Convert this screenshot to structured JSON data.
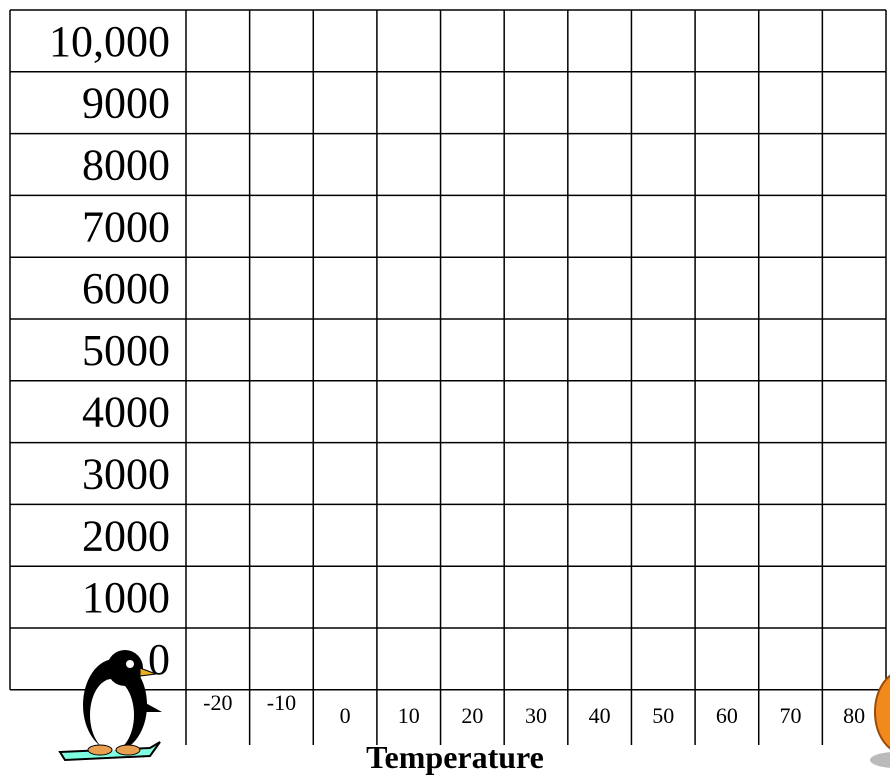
{
  "y_labels": [
    "10,000",
    "9000",
    "8000",
    "7000",
    "6000",
    "5000",
    "4000",
    "3000",
    "2000",
    "1000",
    "0"
  ],
  "x_labels": [
    "-20",
    "-10",
    "0",
    "10",
    "20",
    "30",
    "40",
    "50",
    "60",
    "70",
    "80"
  ],
  "x_axis_title": "Temperature"
}
